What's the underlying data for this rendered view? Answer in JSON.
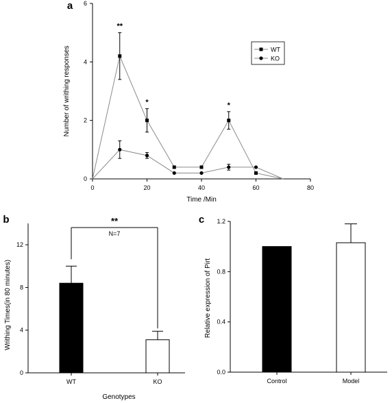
{
  "panels": {
    "a": "a",
    "b": "b",
    "c": "c"
  },
  "chart_data": [
    {
      "type": "line",
      "panel": "a",
      "xlabel": "Time /Min",
      "ylabel": "Number of writhing responses",
      "xlim": [
        0,
        80
      ],
      "ylim": [
        0,
        6
      ],
      "xticks": [
        0,
        20,
        40,
        60,
        80
      ],
      "yticks": [
        0,
        2,
        4,
        6
      ],
      "x": [
        0,
        10,
        20,
        30,
        40,
        50,
        60,
        70
      ],
      "series": [
        {
          "name": "WT",
          "marker": "square",
          "values": [
            0,
            4.2,
            2.0,
            0.4,
            0.4,
            2.0,
            0.2,
            0
          ],
          "errors": [
            0,
            0.8,
            0.4,
            0,
            0,
            0.3,
            0,
            0
          ]
        },
        {
          "name": "KO",
          "marker": "circle",
          "values": [
            0,
            1.0,
            0.8,
            0.2,
            0.2,
            0.4,
            0.4,
            0
          ],
          "errors": [
            0,
            0.3,
            0.1,
            0,
            0,
            0.1,
            0,
            0
          ]
        }
      ],
      "annotations": [
        {
          "x": 10,
          "text": "**"
        },
        {
          "x": 20,
          "text": "*"
        },
        {
          "x": 50,
          "text": "*"
        }
      ],
      "legend": "top-right",
      "grid": false
    },
    {
      "type": "bar",
      "panel": "b",
      "xlabel": "Genotypes",
      "ylabel": "Writhing Times(in 80 minutes)",
      "categories": [
        "WT",
        "KO"
      ],
      "values": [
        8.4,
        3.1
      ],
      "errors": [
        1.6,
        0.8
      ],
      "fills": [
        "#000000",
        "#ffffff"
      ],
      "ylim": [
        0,
        14
      ],
      "yticks": [
        0,
        4,
        8,
        12
      ],
      "significance": {
        "text": "**",
        "note": "N=7"
      },
      "grid": false
    },
    {
      "type": "bar",
      "panel": "c",
      "ylabel": "Relative expression of Pirt",
      "categories": [
        "Control",
        "Model"
      ],
      "values": [
        1.0,
        1.03
      ],
      "errors": [
        0,
        0.15
      ],
      "fills": [
        "#000000",
        "#ffffff"
      ],
      "ylim": [
        0,
        1.2
      ],
      "yticks": [
        0.0,
        0.4,
        0.8,
        1.2
      ],
      "ytick_labels": [
        "0.0",
        "0.4",
        "0.8",
        "1.2"
      ],
      "grid": false
    }
  ]
}
